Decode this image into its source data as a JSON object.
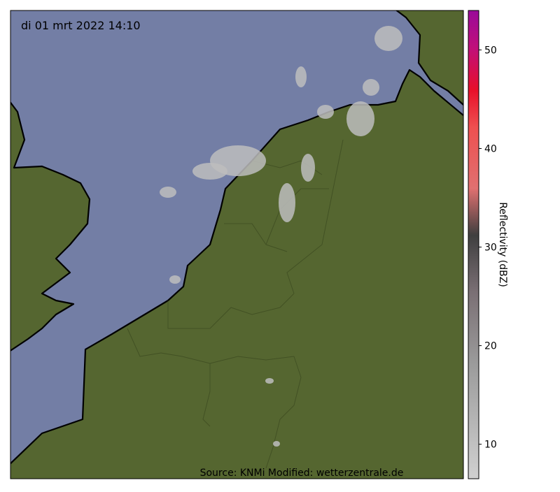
{
  "timestamp": "di 01 mrt 2022 14:10",
  "source": "Source: KNMi Modified: wetterzentrale.de",
  "colorbar": {
    "label": "Reflectivity (dBZ)",
    "lim": [
      6.5,
      54
    ],
    "ticks": [
      10,
      20,
      30,
      40,
      50
    ]
  }
}
